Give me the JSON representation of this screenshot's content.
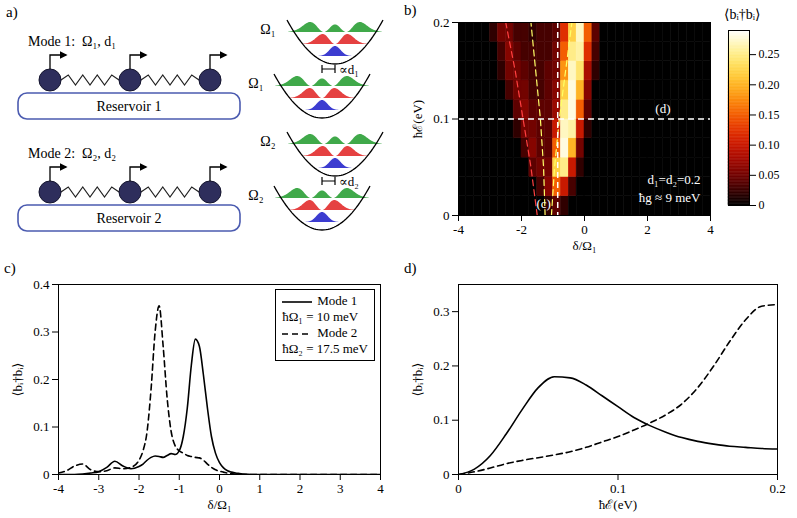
{
  "diagram": {
    "title": "a)",
    "modes": [
      {
        "label": "Mode 1:  Ω₁, d₁",
        "reservoir": "Reservoir 1",
        "frequency_label": "Ω₁",
        "displacement_label": "∝d₁"
      },
      {
        "label": "Mode 2:  Ω₂, d₂",
        "reservoir": "Reservoir 2",
        "frequency_label": "Ω₂",
        "displacement_label": "∝d₂"
      }
    ]
  },
  "chart_data": [
    {
      "type": "heatmap",
      "title": "b)",
      "x_label": "δ/Ω₁",
      "y_label": "ħℰ(eV)",
      "xlim": [
        -4,
        4
      ],
      "xticks": [
        -4,
        -2,
        0,
        2,
        4
      ],
      "ylim": [
        0,
        0.2
      ],
      "yticks": [
        0,
        0.1,
        0.2
      ],
      "x_bins": [
        -4,
        -3.75,
        -3.5,
        -3.25,
        -3,
        -2.75,
        -2.5,
        -2.25,
        -2,
        -1.75,
        -1.5,
        -1.25,
        -1,
        -0.75,
        -0.5,
        -0.25,
        0,
        0.25,
        0.5,
        0.75,
        1,
        1.25,
        1.5,
        1.75,
        2,
        2.25,
        2.5,
        2.75,
        3,
        3.25,
        3.5,
        3.75,
        4
      ],
      "y_bins": [
        0,
        0.02,
        0.04,
        0.06,
        0.08,
        0.1,
        0.12,
        0.14,
        0.16,
        0.18,
        0.2
      ],
      "cells": [
        [
          0,
          0,
          0,
          0,
          0,
          0,
          0,
          0,
          0,
          0,
          0,
          0.02,
          0.04,
          0.02,
          0,
          0,
          0,
          0,
          0,
          0,
          0,
          0,
          0,
          0,
          0,
          0,
          0,
          0,
          0,
          0,
          0,
          0
        ],
        [
          0,
          0,
          0,
          0,
          0,
          0,
          0,
          0,
          0,
          0,
          0.03,
          0.06,
          0.15,
          0.1,
          0.03,
          0,
          0,
          0,
          0,
          0,
          0,
          0,
          0,
          0,
          0,
          0,
          0,
          0,
          0,
          0,
          0,
          0
        ],
        [
          0,
          0,
          0,
          0,
          0,
          0,
          0,
          0,
          0,
          0.04,
          0.05,
          0.05,
          0.22,
          0.25,
          0.1,
          0.02,
          0,
          0,
          0,
          0,
          0,
          0,
          0,
          0,
          0,
          0,
          0,
          0,
          0,
          0,
          0,
          0
        ],
        [
          0,
          0,
          0,
          0,
          0,
          0,
          0,
          0,
          0.03,
          0.06,
          0.04,
          0.04,
          0.15,
          0.28,
          0.2,
          0.05,
          0,
          0,
          0,
          0,
          0,
          0,
          0,
          0,
          0,
          0,
          0,
          0,
          0,
          0,
          0,
          0
        ],
        [
          0,
          0,
          0,
          0,
          0,
          0,
          0,
          0.02,
          0.05,
          0.05,
          0.04,
          0.04,
          0.1,
          0.27,
          0.26,
          0.1,
          0.02,
          0,
          0,
          0,
          0,
          0,
          0,
          0,
          0,
          0,
          0,
          0,
          0,
          0,
          0,
          0
        ],
        [
          0,
          0,
          0,
          0,
          0,
          0,
          0,
          0.04,
          0.06,
          0.04,
          0.04,
          0.04,
          0.07,
          0.25,
          0.28,
          0.15,
          0.04,
          0,
          0,
          0,
          0,
          0,
          0,
          0,
          0,
          0,
          0,
          0,
          0,
          0,
          0,
          0
        ],
        [
          0,
          0,
          0,
          0,
          0,
          0,
          0.03,
          0.05,
          0.05,
          0.03,
          0.03,
          0.04,
          0.06,
          0.22,
          0.28,
          0.2,
          0.06,
          0,
          0,
          0,
          0,
          0,
          0,
          0,
          0,
          0,
          0,
          0,
          0,
          0,
          0,
          0
        ],
        [
          0,
          0,
          0,
          0,
          0,
          0.02,
          0.05,
          0.05,
          0.04,
          0.03,
          0.03,
          0.04,
          0.05,
          0.18,
          0.27,
          0.24,
          0.08,
          0.02,
          0,
          0,
          0,
          0,
          0,
          0,
          0,
          0,
          0,
          0,
          0,
          0,
          0,
          0
        ],
        [
          0,
          0,
          0,
          0,
          0,
          0.03,
          0.06,
          0.04,
          0.03,
          0.03,
          0.03,
          0.03,
          0.05,
          0.15,
          0.25,
          0.26,
          0.12,
          0.03,
          0,
          0,
          0,
          0,
          0,
          0,
          0,
          0,
          0,
          0,
          0,
          0,
          0,
          0
        ],
        [
          0,
          0,
          0,
          0,
          0.02,
          0.05,
          0.05,
          0.03,
          0.03,
          0.02,
          0.03,
          0.03,
          0.04,
          0.12,
          0.22,
          0.27,
          0.15,
          0.04,
          0,
          0,
          0,
          0,
          0,
          0,
          0,
          0,
          0,
          0,
          0,
          0,
          0,
          0
        ]
      ],
      "color": "hot",
      "colorbar": {
        "label": "⟨bᵢ†bᵢ⟩",
        "range": [
          0,
          0.29
        ],
        "ticks": [
          0,
          0.05,
          {
            "value": 0.1,
            "label": "0.10"
          },
          0.15,
          {
            "value": 0.2,
            "label": "0.20"
          },
          0.25
        ]
      },
      "annotations": [
        "d₁=d₂=0.2",
        "ħg ≈ 9 meV"
      ],
      "ref_lines": [
        {
          "axis": "x",
          "value": -0.85,
          "label": "(c)",
          "color": "#ffffff",
          "line_style": "dashed"
        },
        {
          "axis": "y",
          "value": 0.1,
          "label": "(d)",
          "color": "#ffffff",
          "line_style": "dashed"
        }
      ],
      "curves": [
        {
          "color": "#ffff66",
          "line_style": "dashed",
          "x": [
            -1.05,
            -0.95,
            -0.8,
            -0.6,
            -0.4
          ],
          "y": [
            0,
            0.05,
            0.1,
            0.15,
            0.2
          ]
        },
        {
          "color": "#ffff66",
          "line_style": "dashed",
          "x": [
            -1.25,
            -1.3,
            -1.4,
            -1.55,
            -1.7
          ],
          "y": [
            0,
            0.05,
            0.1,
            0.15,
            0.2
          ]
        },
        {
          "color": "#ff4040",
          "line_style": "dashed",
          "x": [
            -1.5,
            -1.7,
            -1.95,
            -2.2,
            -2.5
          ],
          "y": [
            0,
            0.05,
            0.1,
            0.15,
            0.2
          ]
        }
      ]
    },
    {
      "type": "line",
      "title": "c)",
      "x_label": "δ/Ω₁",
      "y_label": "⟨bᵢ†bᵢ⟩",
      "xlim": [
        -4,
        4
      ],
      "xticks": [
        -4,
        -3,
        -2,
        -1,
        0,
        1,
        2,
        3,
        4
      ],
      "ylim": [
        0,
        0.4
      ],
      "yticks": [
        0,
        0.1,
        0.2,
        0.3,
        0.4
      ],
      "legend": "top-right",
      "x": [
        -4,
        -3.8,
        -3.6,
        -3.4,
        -3.2,
        -3,
        -2.8,
        -2.6,
        -2.4,
        -2.2,
        -2,
        -1.9,
        -1.8,
        -1.7,
        -1.6,
        -1.5,
        -1.4,
        -1.3,
        -1.2,
        -1.1,
        -1,
        -0.9,
        -0.8,
        -0.7,
        -0.6,
        -0.5,
        -0.4,
        -0.3,
        -0.2,
        -0.1,
        0,
        0.1,
        0.2,
        0.3,
        0.4,
        0.5,
        0.6,
        0.8,
        1,
        2,
        3,
        4
      ],
      "series": [
        {
          "name": "Mode 1",
          "label": "ħΩ₁ = 10 meV",
          "color": "#000000",
          "line_style": "solid",
          "values": [
            0,
            0,
            0,
            0.001,
            0.003,
            0.006,
            0.015,
            0.028,
            0.018,
            0.012,
            0.017,
            0.022,
            0.03,
            0.036,
            0.039,
            0.038,
            0.036,
            0.04,
            0.044,
            0.042,
            0.05,
            0.08,
            0.14,
            0.23,
            0.285,
            0.27,
            0.21,
            0.14,
            0.08,
            0.045,
            0.025,
            0.014,
            0.008,
            0.005,
            0.003,
            0.002,
            0.001,
            0,
            0,
            0,
            0,
            0
          ]
        },
        {
          "name": "Mode 2",
          "label": "ħΩ₂ = 17.5 meV",
          "color": "#000000",
          "line_style": "dashed",
          "values": [
            0.003,
            0.008,
            0.018,
            0.022,
            0.01,
            0.006,
            0.008,
            0.014,
            0.012,
            0.015,
            0.03,
            0.05,
            0.09,
            0.18,
            0.3,
            0.355,
            0.27,
            0.16,
            0.09,
            0.06,
            0.05,
            0.045,
            0.04,
            0.038,
            0.036,
            0.035,
            0.03,
            0.022,
            0.015,
            0.01,
            0.007,
            0.005,
            0.003,
            0.002,
            0.001,
            0.001,
            0,
            0,
            0,
            0,
            0,
            0
          ]
        }
      ]
    },
    {
      "type": "line",
      "title": "d)",
      "x_label": "ħℰ(eV)",
      "y_label": "⟨bᵢ†bᵢ⟩",
      "xlim": [
        0,
        0.2
      ],
      "xticks": [
        0,
        0.1,
        0.2
      ],
      "ylim": [
        0,
        0.35
      ],
      "yticks": [
        0,
        0.1,
        0.2,
        0.3
      ],
      "x": [
        0,
        0.01,
        0.02,
        0.03,
        0.04,
        0.05,
        0.06,
        0.07,
        0.08,
        0.09,
        0.1,
        0.11,
        0.12,
        0.13,
        0.14,
        0.15,
        0.16,
        0.17,
        0.18,
        0.19,
        0.2
      ],
      "series": [
        {
          "color": "#000000",
          "line_style": "solid",
          "values": [
            0,
            0.01,
            0.035,
            0.075,
            0.12,
            0.16,
            0.18,
            0.178,
            0.165,
            0.145,
            0.125,
            0.105,
            0.09,
            0.078,
            0.068,
            0.061,
            0.056,
            0.052,
            0.05,
            0.048,
            0.047
          ]
        },
        {
          "color": "#000000",
          "line_style": "dashed",
          "values": [
            0,
            0.005,
            0.012,
            0.02,
            0.026,
            0.031,
            0.036,
            0.042,
            0.05,
            0.06,
            0.07,
            0.082,
            0.095,
            0.11,
            0.13,
            0.16,
            0.2,
            0.245,
            0.285,
            0.31,
            0.313
          ]
        }
      ]
    }
  ]
}
